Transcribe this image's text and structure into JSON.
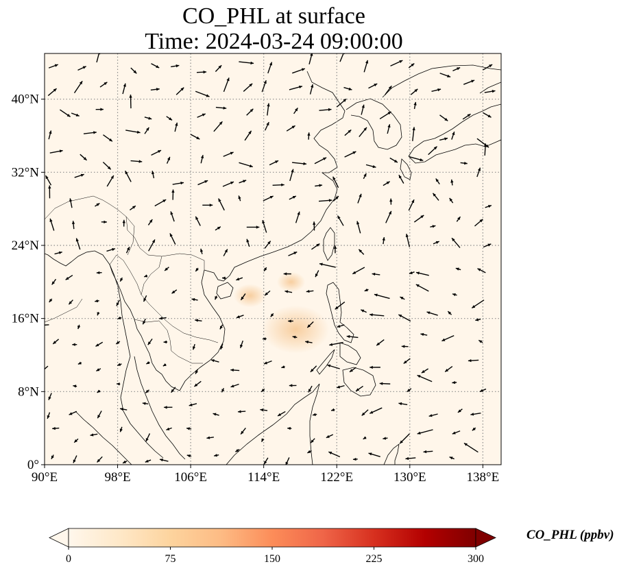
{
  "title": {
    "line1": "CO_PHL at surface",
    "line2": "Time: 2024-03-24 09:00:00"
  },
  "map": {
    "lon_range": [
      90,
      140
    ],
    "lat_range": [
      0,
      45
    ],
    "x_ticks": [
      {
        "value": 90,
        "label": "90°E"
      },
      {
        "value": 98,
        "label": "98°E"
      },
      {
        "value": 106,
        "label": "106°E"
      },
      {
        "value": 114,
        "label": "114°E"
      },
      {
        "value": 122,
        "label": "122°E"
      },
      {
        "value": 130,
        "label": "130°E"
      },
      {
        "value": 138,
        "label": "138°E"
      }
    ],
    "y_ticks": [
      {
        "value": 0,
        "label": "0°"
      },
      {
        "value": 8,
        "label": "8°N"
      },
      {
        "value": 16,
        "label": "16°N"
      },
      {
        "value": 24,
        "label": "24°N"
      },
      {
        "value": 32,
        "label": "32°N"
      },
      {
        "value": 40,
        "label": "40°N"
      }
    ],
    "gridlines": true,
    "background_color": "#fff6ea",
    "plumes": [
      {
        "lon": 117.5,
        "lat": 14.8,
        "value": 60
      },
      {
        "lon": 112.5,
        "lat": 18.5,
        "value": 20
      },
      {
        "lon": 117,
        "lat": 20,
        "value": 15
      }
    ]
  },
  "colorbar": {
    "label": "CO_PHL (ppbv)",
    "colormap": "OrRd",
    "min": 0,
    "max": 300,
    "extend": "both",
    "ticks": [
      {
        "value": 0,
        "label": "0"
      },
      {
        "value": 75,
        "label": "75"
      },
      {
        "value": 150,
        "label": "150"
      },
      {
        "value": 225,
        "label": "225"
      },
      {
        "value": 300,
        "label": "300"
      }
    ],
    "colors": [
      "#fff7ec",
      "#fee8c8",
      "#fdd49e",
      "#fdbb84",
      "#fc8d59",
      "#ef6548",
      "#d7301f",
      "#b30000",
      "#7f0000"
    ]
  }
}
